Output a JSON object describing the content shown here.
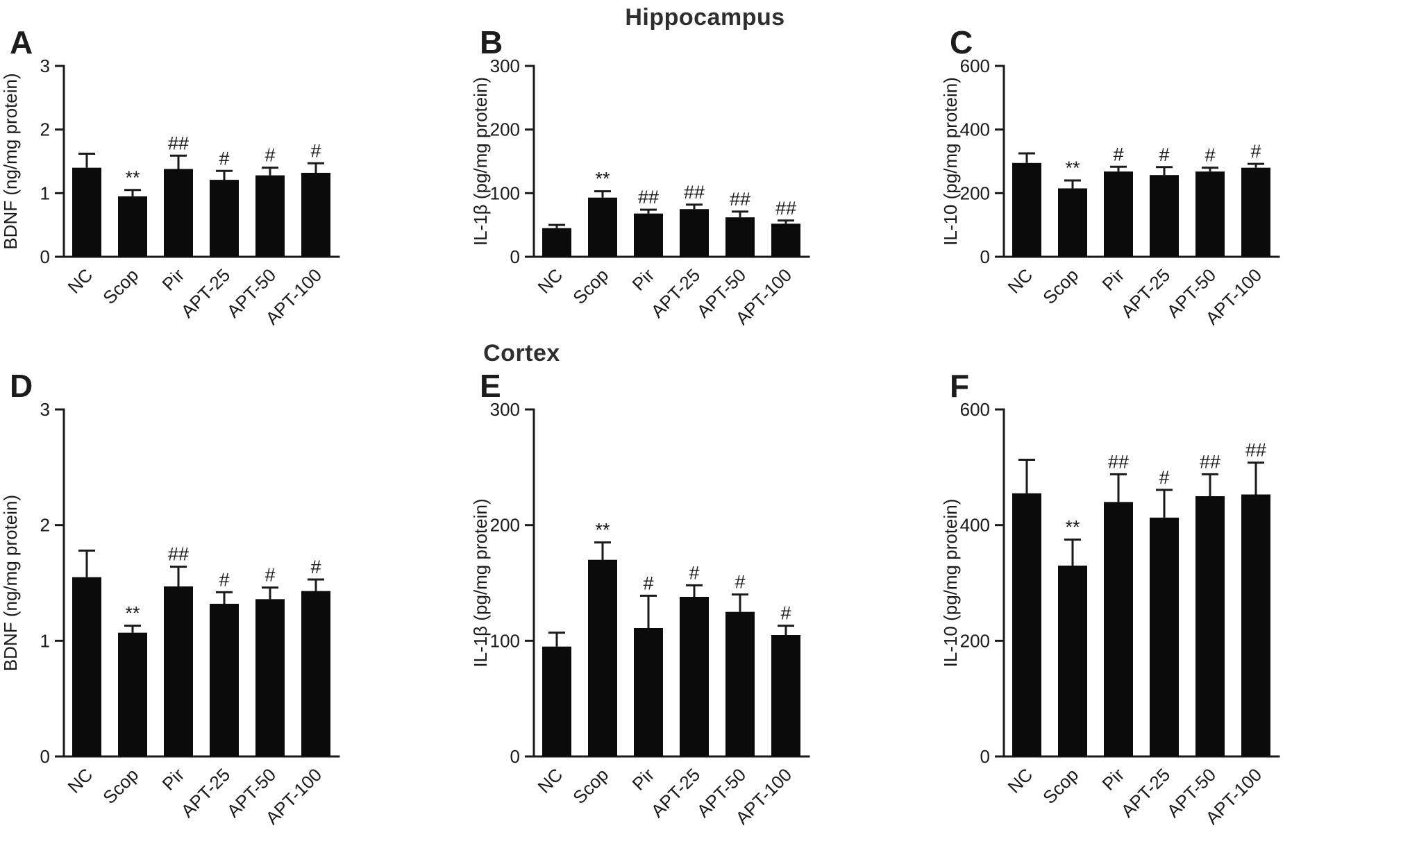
{
  "figure": {
    "section_titles": {
      "top": "Hippocampus",
      "bottom": "Cortex"
    },
    "ink_color": "#1a1a1a",
    "bar_color": "#0b0b0b",
    "background": "#ffffff"
  },
  "chart_data": [
    {
      "panel": "A",
      "region": "Hippocampus",
      "type": "bar",
      "ylabel": "BDNF (ng/mg protein)",
      "xlabel": "",
      "categories": [
        "NC",
        "Scop",
        "Pir",
        "APT-25",
        "APT-50",
        "APT-100"
      ],
      "values": [
        1.4,
        0.95,
        1.38,
        1.21,
        1.28,
        1.32
      ],
      "errors": [
        0.22,
        0.1,
        0.21,
        0.14,
        0.12,
        0.15
      ],
      "annotations": [
        "",
        "**",
        "##",
        "#",
        "#",
        "#"
      ],
      "ylim": [
        0,
        3
      ],
      "yticks": [
        0,
        1,
        2,
        3
      ],
      "grid": false,
      "legend": false,
      "bar_color": "#0b0b0b"
    },
    {
      "panel": "B",
      "region": "Hippocampus",
      "type": "bar",
      "ylabel": "IL-1β (pg/mg protein)",
      "xlabel": "",
      "categories": [
        "NC",
        "Scop",
        "Pir",
        "APT-25",
        "APT-50",
        "APT-100"
      ],
      "values": [
        45,
        93,
        68,
        75,
        62,
        52
      ],
      "errors": [
        5,
        10,
        6,
        7,
        9,
        5
      ],
      "annotations": [
        "",
        "**",
        "##",
        "##",
        "##",
        "##"
      ],
      "ylim": [
        0,
        300
      ],
      "yticks": [
        0,
        100,
        200,
        300
      ],
      "grid": false,
      "legend": false,
      "bar_color": "#0b0b0b"
    },
    {
      "panel": "C",
      "region": "Hippocampus",
      "type": "bar",
      "ylabel": "IL-10 (pg/mg protein)",
      "xlabel": "",
      "categories": [
        "NC",
        "Scop",
        "Pir",
        "APT-25",
        "APT-50",
        "APT-100"
      ],
      "values": [
        295,
        215,
        268,
        257,
        268,
        280
      ],
      "errors": [
        30,
        25,
        15,
        25,
        12,
        12
      ],
      "annotations": [
        "",
        "**",
        "#",
        "#",
        "#",
        "#"
      ],
      "ylim": [
        0,
        600
      ],
      "yticks": [
        0,
        200,
        400,
        600
      ],
      "grid": false,
      "legend": false,
      "bar_color": "#0b0b0b"
    },
    {
      "panel": "D",
      "region": "Cortex",
      "type": "bar",
      "ylabel": "BDNF (ng/mg protein)",
      "xlabel": "",
      "categories": [
        "NC",
        "Scop",
        "Pir",
        "APT-25",
        "APT-50",
        "APT-100"
      ],
      "values": [
        1.55,
        1.07,
        1.47,
        1.32,
        1.36,
        1.43
      ],
      "errors": [
        0.23,
        0.06,
        0.17,
        0.1,
        0.1,
        0.1
      ],
      "annotations": [
        "",
        "**",
        "##",
        "#",
        "#",
        "#"
      ],
      "ylim": [
        0,
        3
      ],
      "yticks": [
        0,
        1,
        2,
        3
      ],
      "grid": false,
      "legend": false,
      "bar_color": "#0b0b0b"
    },
    {
      "panel": "E",
      "region": "Cortex",
      "type": "bar",
      "ylabel": "IL-1β (pg/mg protein)",
      "xlabel": "",
      "categories": [
        "NC",
        "Scop",
        "Pir",
        "APT-25",
        "APT-50",
        "APT-100"
      ],
      "values": [
        95,
        170,
        111,
        138,
        125,
        105
      ],
      "errors": [
        12,
        15,
        28,
        10,
        15,
        8
      ],
      "annotations": [
        "",
        "**",
        "#",
        "#",
        "#",
        "#"
      ],
      "ylim": [
        0,
        300
      ],
      "yticks": [
        0,
        100,
        200,
        300
      ],
      "grid": false,
      "legend": false,
      "bar_color": "#0b0b0b"
    },
    {
      "panel": "F",
      "region": "Cortex",
      "type": "bar",
      "ylabel": "IL-10 (pg/mg protein)",
      "xlabel": "",
      "categories": [
        "NC",
        "Scop",
        "Pir",
        "APT-25",
        "APT-50",
        "APT-100"
      ],
      "values": [
        455,
        330,
        440,
        413,
        450,
        453
      ],
      "errors": [
        58,
        45,
        48,
        48,
        38,
        55
      ],
      "annotations": [
        "",
        "**",
        "##",
        "#",
        "##",
        "##"
      ],
      "ylim": [
        0,
        600
      ],
      "yticks": [
        0,
        200,
        400,
        600
      ],
      "grid": false,
      "legend": false,
      "bar_color": "#0b0b0b"
    }
  ]
}
